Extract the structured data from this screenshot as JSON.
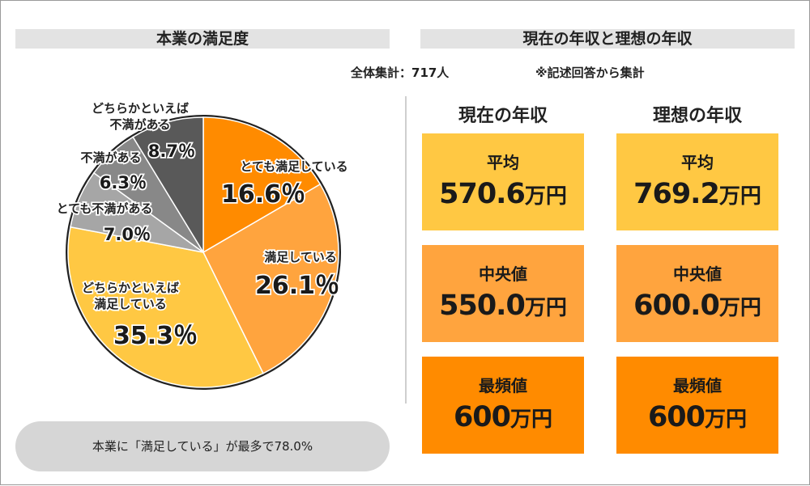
{
  "header": {
    "left_title": "本業の満足度",
    "right_title": "現在の年収と理想の年収",
    "total_note": "全体集計：717人",
    "source_note": "※記述回答から集計"
  },
  "colors": {
    "very_satisfied": "#FF8B00",
    "satisfied": "#FFA43E",
    "somewhat_satisfied": "#FFC843",
    "very_dissatisfied": "#A6A6A6",
    "dissatisfied": "#888888",
    "somewhat_dissatisfied": "#595959",
    "card_yellow": "#FFC843",
    "card_light_orange": "#FFA43E",
    "card_orange": "#FF8B00"
  },
  "chart_data": {
    "type": "pie",
    "title": "本業の満足度",
    "start": "top, clockwise",
    "slices": [
      {
        "label": "とても満足している",
        "value": 16.6,
        "display": "16.6％"
      },
      {
        "label": "満足している",
        "value": 26.1,
        "display": "26.1％"
      },
      {
        "label": "どちらかといえば満足している",
        "value": 35.3,
        "display": "35.3％",
        "label_lines": [
          "どちらかといえば",
          "満足している"
        ]
      },
      {
        "label": "とても不満がある",
        "value": 7.0,
        "display": "7.0％"
      },
      {
        "label": "不満がある",
        "value": 6.3,
        "display": "6.3％"
      },
      {
        "label": "どちらかといえば不満がある",
        "value": 8.7,
        "display": "8.7％",
        "label_lines": [
          "どちらかといえば",
          "不満がある"
        ]
      }
    ]
  },
  "summary": "本業に「満足している」が最多で78.0%",
  "income": {
    "unit": "万円",
    "columns": [
      {
        "title": "現在の年収",
        "cards": [
          {
            "label": "平均",
            "value": "570.6"
          },
          {
            "label": "中央値",
            "value": "550.0"
          },
          {
            "label": "最頻値",
            "value": "600"
          }
        ]
      },
      {
        "title": "理想の年収",
        "cards": [
          {
            "label": "平均",
            "value": "769.2"
          },
          {
            "label": "中央値",
            "value": "600.0"
          },
          {
            "label": "最頻値",
            "value": "600"
          }
        ]
      }
    ]
  }
}
